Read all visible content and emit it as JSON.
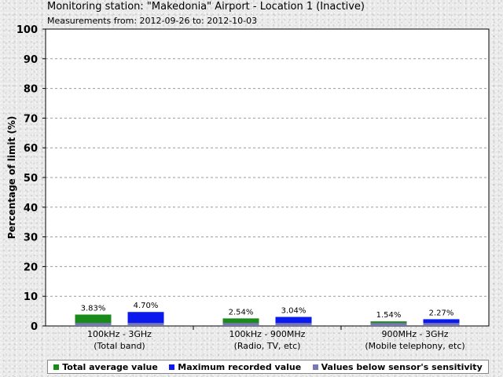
{
  "header": {
    "title": "Monitoring station: \"Makedonia\" Airport - Location 1 (Inactive)",
    "subtitle": "Measurements from: 2012-09-26 to: 2012-10-03"
  },
  "chart_data": {
    "type": "bar",
    "ylabel": "Percentage of limit (%)",
    "ylim": [
      0,
      100
    ],
    "yticks": [
      0,
      10,
      20,
      30,
      40,
      50,
      60,
      70,
      80,
      90,
      100
    ],
    "grid": true,
    "legend_position": "bottom",
    "categories": [
      {
        "line1": "100kHz - 3GHz",
        "line2": "(Total band)"
      },
      {
        "line1": "100kHz - 900MHz",
        "line2": "(Radio, TV, etc)"
      },
      {
        "line1": "900MHz - 3GHz",
        "line2": "(Mobile telephony, etc)"
      }
    ],
    "series": [
      {
        "name": "Total average value",
        "color": "#1a8a1a",
        "values": [
          3.83,
          2.54,
          1.54
        ],
        "labels": [
          "3.83%",
          "2.54%",
          "1.54%"
        ]
      },
      {
        "name": "Maximum recorded value",
        "color": "#0a1aee",
        "values": [
          4.7,
          3.04,
          2.27
        ],
        "labels": [
          "4.70%",
          "3.04%",
          "2.27%"
        ]
      }
    ],
    "sensitivity": {
      "name": "Values below sensor's sensitivity",
      "color": "#7878b4",
      "values": [
        1.0,
        1.0,
        1.0
      ]
    }
  }
}
